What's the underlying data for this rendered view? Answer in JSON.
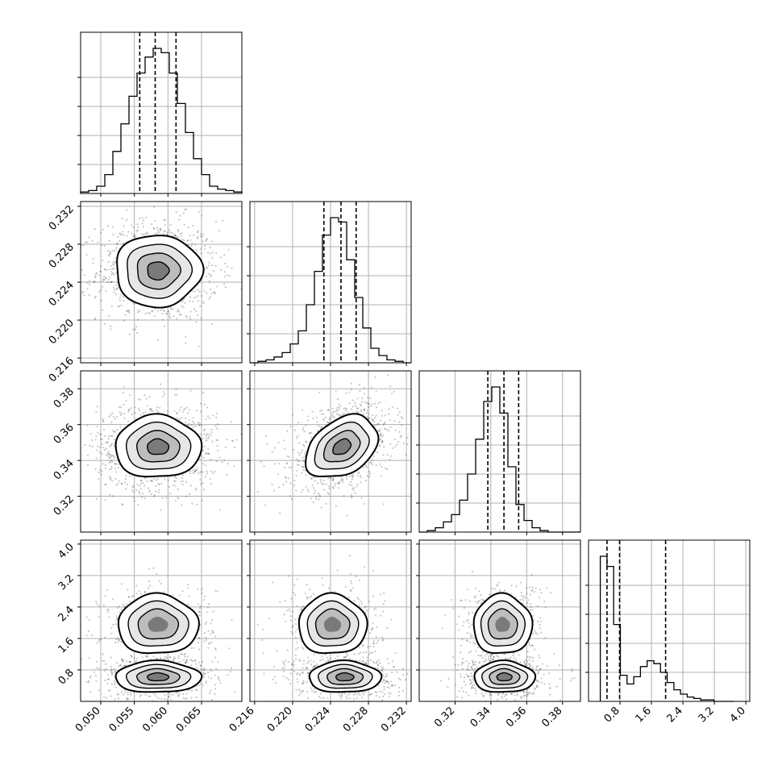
{
  "chart_data": {
    "type": "corner",
    "title": "",
    "grid": true,
    "parameters": [
      {
        "range": [
          0.047,
          0.071
        ],
        "ticks": [
          0.05,
          0.055,
          0.06,
          0.065
        ],
        "tick_labels": [
          "0.050",
          "0.055",
          "0.060",
          "0.065"
        ],
        "quantiles": [
          0.0558,
          0.0581,
          0.0612
        ],
        "hist": {
          "edges_start": 0.047,
          "bin_width": 0.0012,
          "counts": [
            0.01,
            0.02,
            0.05,
            0.13,
            0.29,
            0.48,
            0.67,
            0.83,
            0.94,
            1.0,
            0.97,
            0.83,
            0.62,
            0.42,
            0.24,
            0.13,
            0.05,
            0.03,
            0.02,
            0.01
          ]
        }
      },
      {
        "range": [
          0.2155,
          0.2325
        ],
        "ticks": [
          0.216,
          0.22,
          0.224,
          0.228,
          0.232
        ],
        "tick_labels": [
          "0.216",
          "0.220",
          "0.224",
          "0.228",
          "0.232"
        ],
        "quantiles": [
          0.2233,
          0.2251,
          0.2267
        ],
        "hist": {
          "edges_start": 0.2155,
          "bin_width": 0.00085,
          "counts": [
            0.0,
            0.01,
            0.02,
            0.04,
            0.07,
            0.13,
            0.22,
            0.4,
            0.63,
            0.88,
            1.0,
            0.97,
            0.71,
            0.45,
            0.24,
            0.1,
            0.05,
            0.02,
            0.01,
            0.0
          ]
        }
      },
      {
        "range": [
          0.3,
          0.39
        ],
        "ticks": [
          0.32,
          0.34,
          0.36,
          0.38
        ],
        "tick_labels": [
          "0.32",
          "0.34",
          "0.36",
          "0.38"
        ],
        "quantiles": [
          0.3383,
          0.3473,
          0.3555
        ],
        "hist": {
          "edges_start": 0.3,
          "bin_width": 0.0045,
          "counts": [
            0.0,
            0.01,
            0.03,
            0.07,
            0.12,
            0.22,
            0.4,
            0.64,
            0.9,
            1.0,
            0.82,
            0.45,
            0.19,
            0.08,
            0.03,
            0.01,
            0.0,
            0.0,
            0.0,
            0.0
          ]
        }
      },
      {
        "range": [
          0.0,
          4.1
        ],
        "ticks": [
          0.8,
          1.6,
          2.4,
          3.2,
          4.0
        ],
        "tick_labels": [
          "0.8",
          "1.6",
          "2.4",
          "3.2",
          "4.0"
        ],
        "quantiles": [
          0.47,
          0.79,
          1.96
        ],
        "hist": {
          "edges_start": 0.3,
          "bin_width": 0.17,
          "counts": [
            1.0,
            0.93,
            0.53,
            0.18,
            0.12,
            0.17,
            0.24,
            0.28,
            0.26,
            0.2,
            0.13,
            0.08,
            0.05,
            0.03,
            0.02,
            0.01,
            0.01,
            0.0,
            0.0,
            0.0
          ]
        }
      }
    ],
    "pairs": [
      {
        "row": 1,
        "col": 0,
        "mean": [
          0.0585,
          0.2252
        ],
        "sigma": [
          0.0032,
          0.0019
        ],
        "rho": 0.0
      },
      {
        "row": 2,
        "col": 0,
        "mean": [
          0.0585,
          0.3475
        ],
        "sigma": [
          0.0032,
          0.0087
        ],
        "rho": 0.0
      },
      {
        "row": 2,
        "col": 1,
        "mean": [
          0.2252,
          0.3475
        ],
        "sigma": [
          0.0019,
          0.0087
        ],
        "rho": 0.35
      },
      {
        "row": 3,
        "col": 0,
        "mode_a": {
          "mean": [
            0.0585,
            1.95
          ],
          "sigma": [
            0.003,
            0.38
          ],
          "weight": 0.4
        },
        "mode_b": {
          "mean": [
            0.0585,
            0.62
          ],
          "sigma": [
            0.0032,
            0.2
          ],
          "weight": 0.6
        }
      },
      {
        "row": 3,
        "col": 1,
        "mode_a": {
          "mean": [
            0.2242,
            1.95
          ],
          "sigma": [
            0.0018,
            0.38
          ],
          "weight": 0.4
        },
        "mode_b": {
          "mean": [
            0.2255,
            0.62
          ],
          "sigma": [
            0.0019,
            0.2
          ],
          "weight": 0.6
        }
      },
      {
        "row": 3,
        "col": 2,
        "mode_a": {
          "mean": [
            0.3465,
            1.95
          ],
          "sigma": [
            0.0082,
            0.38
          ],
          "weight": 0.4
        },
        "mode_b": {
          "mean": [
            0.3475,
            0.62
          ],
          "sigma": [
            0.0085,
            0.2
          ],
          "weight": 0.6
        }
      }
    ],
    "contour_levels_sigma": [
      0.5,
      1.0,
      1.5,
      2.0
    ],
    "colors": {
      "line": "#000000",
      "grid": "#b0b0b0",
      "points": "#000000"
    }
  }
}
